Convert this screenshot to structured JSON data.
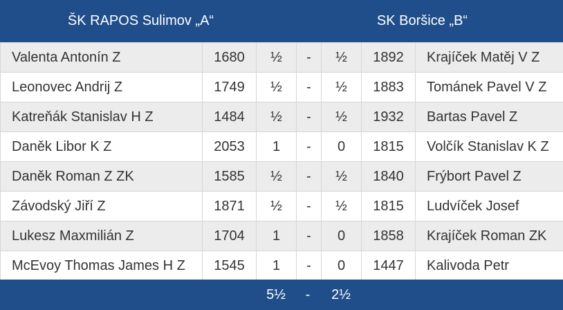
{
  "header": {
    "home_team": "ŠK RAPOS Sulimov „A“",
    "away_team": "SK Boršice „B“"
  },
  "boards": [
    {
      "home_player": "Valenta Antonín Z",
      "home_rating": "1680",
      "home_score": "½",
      "separator": "-",
      "away_score": "½",
      "away_rating": "1892",
      "away_player": "Krajíček Matěj V Z"
    },
    {
      "home_player": "Leonovec Andrij Z",
      "home_rating": "1749",
      "home_score": "½",
      "separator": "-",
      "away_score": "½",
      "away_rating": "1883",
      "away_player": "Tománek Pavel V Z"
    },
    {
      "home_player": "Katreňák Stanislav H Z",
      "home_rating": "1484",
      "home_score": "½",
      "separator": "-",
      "away_score": "½",
      "away_rating": "1932",
      "away_player": "Bartas Pavel Z"
    },
    {
      "home_player": "Daněk Libor K Z",
      "home_rating": "2053",
      "home_score": "1",
      "separator": "-",
      "away_score": "0",
      "away_rating": "1815",
      "away_player": "Volčík Stanislav K Z"
    },
    {
      "home_player": "Daněk Roman Z ZK",
      "home_rating": "1585",
      "home_score": "½",
      "separator": "-",
      "away_score": "½",
      "away_rating": "1840",
      "away_player": "Frýbort Pavel Z"
    },
    {
      "home_player": "Závodský Jiří Z",
      "home_rating": "1871",
      "home_score": "½",
      "separator": "-",
      "away_score": "½",
      "away_rating": "1815",
      "away_player": "Ludvíček Josef"
    },
    {
      "home_player": "Lukesz Maxmilián Z",
      "home_rating": "1704",
      "home_score": "1",
      "separator": "-",
      "away_score": "0",
      "away_rating": "1858",
      "away_player": "Krajíček Roman ZK"
    },
    {
      "home_player": "McEvoy Thomas James H Z",
      "home_rating": "1545",
      "home_score": "1",
      "separator": "-",
      "away_score": "0",
      "away_rating": "1447",
      "away_player": "Kalivoda Petr"
    }
  ],
  "totals": {
    "home_total": "5½",
    "separator": "-",
    "away_total": "2½"
  },
  "colors": {
    "header_bg": "#1f4e8a",
    "row_shade": "#ececec",
    "grid_line": "#d6d6d6"
  }
}
